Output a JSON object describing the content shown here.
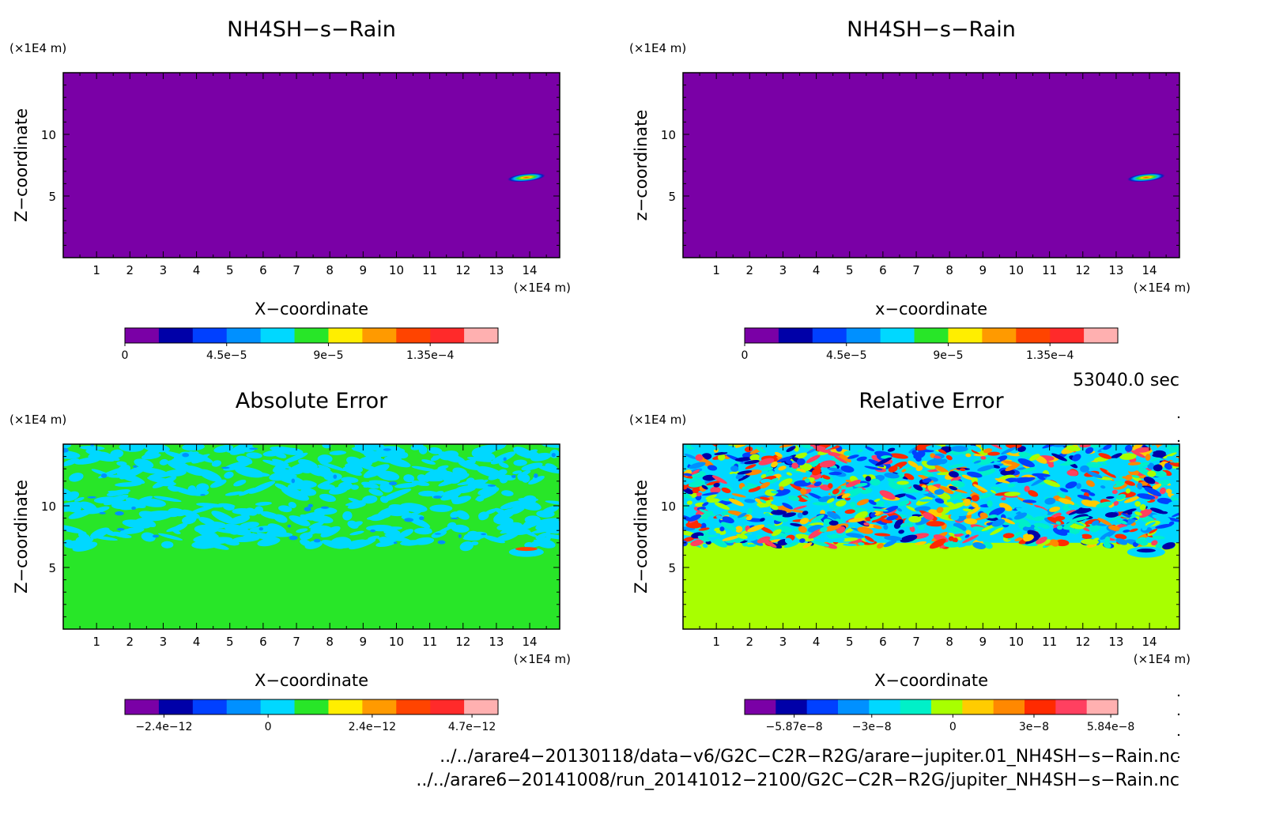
{
  "chart_data": [
    {
      "type": "heatmap",
      "title": "NH4SH−s−Rain",
      "xlabel": "X−coordinate",
      "ylabel": "Z−coordinate",
      "x_unit": "(×1E4 m)",
      "y_unit": "(×1E4 m)",
      "xlim": [
        0,
        14.9
      ],
      "ylim": [
        0,
        15
      ],
      "x_ticks": [
        "1",
        "2",
        "3",
        "4",
        "5",
        "6",
        "7",
        "8",
        "9",
        "10",
        "11",
        "12",
        "13",
        "14"
      ],
      "y_ticks": [
        "5",
        "10"
      ],
      "field": "background 0 everywhere; single thin bright blob near x=14, z=6.5",
      "colorbar": {
        "colors": [
          "#7a00a6",
          "#0000a8",
          "#0040ff",
          "#0090ff",
          "#00d8ff",
          "#28e628",
          "#ffee00",
          "#ff9a00",
          "#ff4400",
          "#ff2a2a",
          "#ffb0b0"
        ],
        "tick_labels": [
          "0",
          "4.5e−5",
          "9e−5",
          "1.35e−4"
        ],
        "tick_values": [
          0,
          4.5e-05,
          9e-05,
          0.000135
        ]
      },
      "blob": {
        "x": 13.9,
        "z": 6.5
      }
    },
    {
      "type": "heatmap",
      "title": "NH4SH−s−Rain",
      "xlabel": "x−coordinate",
      "ylabel": "z−coordinate",
      "x_unit": "(×1E4 m)",
      "y_unit": "(×1E4 m)",
      "xlim": [
        0,
        14.9
      ],
      "ylim": [
        0,
        15
      ],
      "x_ticks": [
        "1",
        "2",
        "3",
        "4",
        "5",
        "6",
        "7",
        "8",
        "9",
        "10",
        "11",
        "12",
        "13",
        "14"
      ],
      "y_ticks": [
        "5",
        "10"
      ],
      "colorbar": {
        "colors": [
          "#7a00a6",
          "#0000a8",
          "#0040ff",
          "#0090ff",
          "#00d8ff",
          "#28e628",
          "#ffee00",
          "#ff9a00",
          "#ff4400",
          "#ff2a2a",
          "#ffb0b0"
        ],
        "tick_labels": [
          "0",
          "4.5e−5",
          "9e−5",
          "1.35e−4"
        ],
        "tick_values": [
          0,
          4.5e-05,
          9e-05,
          0.000135
        ]
      },
      "blob": {
        "x": 13.9,
        "z": 6.5
      }
    },
    {
      "type": "heatmap",
      "title": "Absolute Error",
      "xlabel": "X−coordinate",
      "ylabel": "Z−coordinate",
      "x_unit": "(×1E4 m)",
      "y_unit": "(×1E4 m)",
      "xlim": [
        0,
        14.9
      ],
      "ylim": [
        0,
        15
      ],
      "x_ticks": [
        "1",
        "2",
        "3",
        "4",
        "5",
        "6",
        "7",
        "8",
        "9",
        "10",
        "11",
        "12",
        "13",
        "14"
      ],
      "y_ticks": [
        "5",
        "10"
      ],
      "colorbar": {
        "colors": [
          "#7a00a6",
          "#0000a8",
          "#0040ff",
          "#0090ff",
          "#00d8ff",
          "#28e628",
          "#ffee00",
          "#ff9a00",
          "#ff4400",
          "#ff2a2a",
          "#ffb0b0"
        ],
        "tick_labels": [
          "−2.4e−12",
          "0",
          "2.4e−12",
          "4.7e−12"
        ],
        "tick_values": [
          -2.4e-12,
          0,
          2.4e-12,
          4.7e-12
        ]
      },
      "noisy_band_z": [
        7,
        15
      ]
    },
    {
      "type": "heatmap",
      "title": "Relative Error",
      "xlabel": "X−coordinate",
      "ylabel": "Z−coordinate",
      "x_unit": "(×1E4 m)",
      "y_unit": "(×1E4 m)",
      "xlim": [
        0,
        14.9
      ],
      "ylim": [
        0,
        15
      ],
      "x_ticks": [
        "1",
        "2",
        "3",
        "4",
        "5",
        "6",
        "7",
        "8",
        "9",
        "10",
        "11",
        "12",
        "13",
        "14"
      ],
      "y_ticks": [
        "5",
        "10"
      ],
      "colorbar": {
        "colors": [
          "#7a00a6",
          "#0000a8",
          "#0040ff",
          "#0090ff",
          "#00d8ff",
          "#00f0c8",
          "#a8ff00",
          "#ffcc00",
          "#ff8800",
          "#ff2a00",
          "#ff4060",
          "#ffb0b0"
        ],
        "tick_labels": [
          "−5.87e−8",
          "−3e−8",
          "0",
          "3e−8",
          "5.84e−8"
        ],
        "tick_values": [
          -5.87e-08,
          -3e-08,
          0,
          3e-08,
          5.84e-08
        ]
      },
      "noisy_band_z": [
        7,
        15
      ]
    }
  ],
  "time_label": "53040.0 sec",
  "files": [
    "../../arare4−20130118/data−v6/G2C−C2R−R2G/arare−jupiter.01_NH4SH−s−Rain.nc",
    "../../arare6−20141008/run_20141012−2100/G2C−C2R−R2G/jupiter_NH4SH−s−Rain.nc"
  ]
}
